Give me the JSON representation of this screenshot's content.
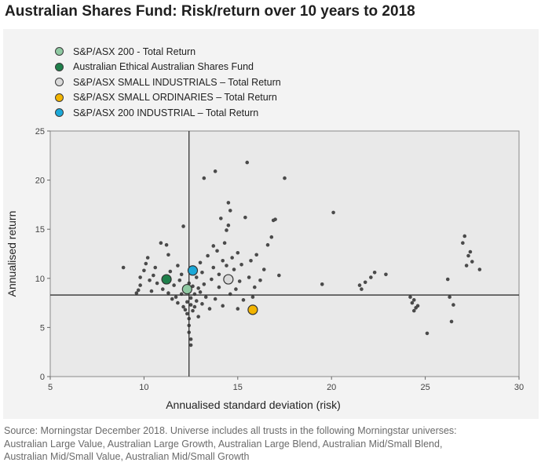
{
  "chart_data": {
    "type": "scatter",
    "title": "Australian Shares Fund: Risk/return over 10 years to 2018",
    "xlabel": "Annualised standard deviation (risk)",
    "ylabel": "Annualised return",
    "xlim": [
      5,
      30
    ],
    "ylim": [
      0,
      25
    ],
    "x_ticks": [
      "5",
      "10",
      "15",
      "20",
      "25",
      "30"
    ],
    "y_ticks": [
      "0",
      "5",
      "10",
      "15",
      "20",
      "25"
    ],
    "grid": false,
    "legend_position": "top-left",
    "reference_lines": {
      "x": 12.4,
      "y": 8.3
    },
    "highlighted": [
      {
        "name": "S&P/ASX 200  - Total Return",
        "x": 12.3,
        "y": 8.9,
        "color": "#8fc9a2"
      },
      {
        "name": "Australian Ethical Australian Shares Fund",
        "x": 11.2,
        "y": 9.9,
        "color": "#1e7f4a"
      },
      {
        "name": "S&P/ASX SMALL INDUSTRIALS – Total Return",
        "x": 14.5,
        "y": 9.9,
        "color": "#d9d9d9"
      },
      {
        "name": "S&P/ASX SMALL ORDINARIES – Total Return",
        "x": 15.8,
        "y": 6.8,
        "color": "#f2b400"
      },
      {
        "name": "S&P/ASX 200 INDUSTRIAL – Total Return",
        "x": 12.6,
        "y": 10.8,
        "color": "#1ba8d8"
      }
    ],
    "universe_points": [
      [
        8.9,
        11.1
      ],
      [
        9.6,
        8.5
      ],
      [
        9.7,
        8.8
      ],
      [
        9.8,
        9.3
      ],
      [
        9.8,
        10.1
      ],
      [
        10.0,
        10.8
      ],
      [
        10.1,
        11.5
      ],
      [
        10.2,
        12.1
      ],
      [
        10.3,
        9.8
      ],
      [
        10.4,
        8.7
      ],
      [
        10.5,
        10.3
      ],
      [
        10.6,
        11.1
      ],
      [
        10.7,
        9.5
      ],
      [
        10.9,
        13.6
      ],
      [
        11.0,
        8.9
      ],
      [
        11.2,
        13.4
      ],
      [
        11.3,
        12.4
      ],
      [
        11.3,
        8.5
      ],
      [
        11.4,
        10.7
      ],
      [
        11.5,
        7.9
      ],
      [
        11.6,
        9.3
      ],
      [
        11.7,
        8.1
      ],
      [
        11.8,
        7.5
      ],
      [
        11.8,
        11.3
      ],
      [
        11.9,
        9.8
      ],
      [
        12.0,
        10.4
      ],
      [
        12.0,
        8.4
      ],
      [
        12.1,
        7.1
      ],
      [
        12.1,
        15.3
      ],
      [
        12.2,
        9.1
      ],
      [
        12.2,
        6.8
      ],
      [
        12.3,
        8.6
      ],
      [
        12.3,
        7.6
      ],
      [
        12.3,
        6.4
      ],
      [
        12.4,
        9.5
      ],
      [
        12.4,
        5.9
      ],
      [
        12.4,
        5.2
      ],
      [
        12.4,
        4.5
      ],
      [
        12.5,
        3.8
      ],
      [
        12.5,
        3.2
      ],
      [
        12.5,
        7.3
      ],
      [
        12.5,
        8.0
      ],
      [
        12.6,
        9.2
      ],
      [
        12.6,
        6.7
      ],
      [
        12.7,
        8.4
      ],
      [
        12.7,
        7.1
      ],
      [
        12.8,
        10.1
      ],
      [
        12.8,
        7.7
      ],
      [
        12.9,
        9.0
      ],
      [
        12.9,
        6.1
      ],
      [
        13.0,
        8.6
      ],
      [
        13.0,
        11.6
      ],
      [
        13.1,
        7.4
      ],
      [
        13.1,
        10.6
      ],
      [
        13.2,
        9.4
      ],
      [
        13.2,
        20.2
      ],
      [
        13.3,
        8.1
      ],
      [
        13.4,
        12.3
      ],
      [
        13.5,
        6.9
      ],
      [
        13.6,
        9.9
      ],
      [
        13.7,
        11.1
      ],
      [
        13.7,
        13.3
      ],
      [
        13.8,
        7.9
      ],
      [
        13.8,
        20.9
      ],
      [
        13.9,
        12.8
      ],
      [
        14.0,
        9.1
      ],
      [
        14.0,
        10.4
      ],
      [
        14.1,
        16.1
      ],
      [
        14.2,
        11.8
      ],
      [
        14.2,
        7.2
      ],
      [
        14.3,
        13.6
      ],
      [
        14.4,
        11.3
      ],
      [
        14.4,
        14.9
      ],
      [
        14.5,
        15.4
      ],
      [
        14.5,
        17.7
      ],
      [
        14.6,
        16.9
      ],
      [
        14.6,
        8.4
      ],
      [
        14.7,
        12.1
      ],
      [
        14.8,
        10.9
      ],
      [
        14.9,
        8.9
      ],
      [
        15.0,
        12.6
      ],
      [
        15.0,
        6.9
      ],
      [
        15.1,
        9.7
      ],
      [
        15.2,
        11.4
      ],
      [
        15.3,
        7.8
      ],
      [
        15.4,
        16.2
      ],
      [
        15.5,
        21.8
      ],
      [
        15.6,
        10.1
      ],
      [
        15.7,
        11.8
      ],
      [
        15.8,
        8.1
      ],
      [
        15.9,
        9.1
      ],
      [
        16.0,
        12.4
      ],
      [
        16.2,
        9.8
      ],
      [
        16.4,
        10.9
      ],
      [
        16.6,
        13.4
      ],
      [
        16.8,
        14.2
      ],
      [
        16.9,
        15.9
      ],
      [
        17.0,
        16.0
      ],
      [
        17.2,
        10.3
      ],
      [
        17.5,
        20.2
      ],
      [
        19.5,
        9.4
      ],
      [
        20.1,
        16.7
      ],
      [
        21.5,
        9.3
      ],
      [
        21.6,
        8.9
      ],
      [
        21.8,
        9.6
      ],
      [
        22.1,
        10.1
      ],
      [
        22.3,
        10.6
      ],
      [
        22.9,
        10.4
      ],
      [
        24.2,
        8.1
      ],
      [
        24.3,
        7.5
      ],
      [
        24.4,
        7.8
      ],
      [
        24.4,
        6.7
      ],
      [
        24.5,
        7.0
      ],
      [
        24.6,
        7.2
      ],
      [
        25.1,
        4.4
      ],
      [
        26.2,
        9.9
      ],
      [
        26.3,
        8.1
      ],
      [
        26.4,
        5.6
      ],
      [
        26.5,
        7.3
      ],
      [
        27.0,
        13.6
      ],
      [
        27.1,
        14.3
      ],
      [
        27.2,
        11.3
      ],
      [
        27.3,
        12.3
      ],
      [
        27.4,
        12.7
      ],
      [
        27.5,
        11.7
      ],
      [
        27.9,
        10.9
      ]
    ]
  },
  "source_lines": [
    "Source: Morningstar December 2018.  Universe includes all trusts in the following Morningstar universes:",
    "Australian Large Value, Australian Large Growth, Australian Large Blend, Australian Mid/Small Blend,",
    "Australian Mid/Small Value, Australian Mid/Small Growth"
  ]
}
